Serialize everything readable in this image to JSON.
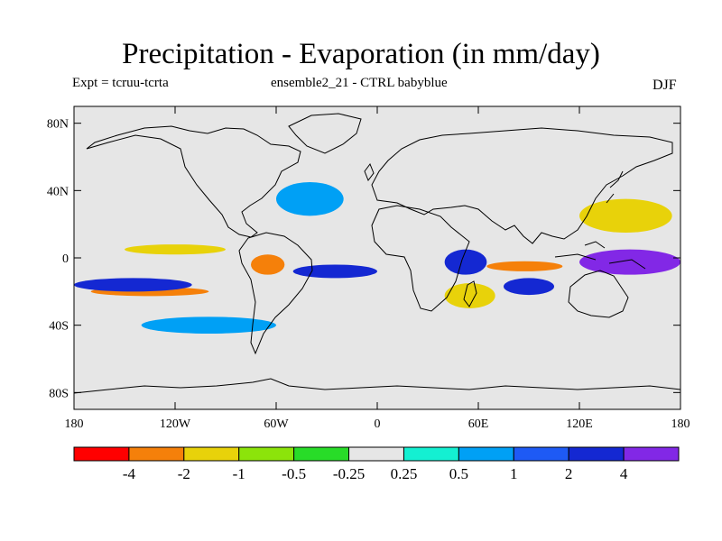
{
  "title": "Precipitation - Evaporation (in mm/day)",
  "experiment": "Expt = tcruu-tcrta",
  "subtitle": "ensemble2_21 - CTRL babyblue",
  "season": "DJF",
  "map": {
    "projection": "equirectangular",
    "lon_range": [
      -180,
      180
    ],
    "lat_range": [
      -90,
      90
    ],
    "x_ticks": [
      {
        "lon": -180,
        "label": "180"
      },
      {
        "lon": -120,
        "label": "120W"
      },
      {
        "lon": -60,
        "label": "60W"
      },
      {
        "lon": 0,
        "label": "0"
      },
      {
        "lon": 60,
        "label": "60E"
      },
      {
        "lon": 120,
        "label": "120E"
      },
      {
        "lon": 180,
        "label": "180"
      }
    ],
    "y_ticks": [
      {
        "lat": 80,
        "label": "80N"
      },
      {
        "lat": 40,
        "label": "40N"
      },
      {
        "lat": 0,
        "label": "0"
      },
      {
        "lat": -40,
        "label": "40S"
      },
      {
        "lat": -80,
        "label": "80S"
      }
    ],
    "background_color": "#e6e6e6",
    "field_regions": [
      {
        "name": "pacific-dry-band",
        "level": "-2",
        "lon": [
          -170,
          -100
        ],
        "lat": [
          -22,
          -18
        ]
      },
      {
        "name": "south-pacific-wet-band",
        "level": "2",
        "lon": [
          -180,
          -110
        ],
        "lat": [
          -20,
          -12
        ]
      },
      {
        "name": "east-pacific-dry",
        "level": "-1",
        "lon": [
          -150,
          -90
        ],
        "lat": [
          2,
          8
        ]
      },
      {
        "name": "amazon-dry",
        "level": "-2",
        "lon": [
          -75,
          -55
        ],
        "lat": [
          -10,
          2
        ]
      },
      {
        "name": "south-atlantic-wet",
        "level": "2",
        "lon": [
          -50,
          0
        ],
        "lat": [
          -12,
          -4
        ]
      },
      {
        "name": "east-africa-wet",
        "level": "2",
        "lon": [
          40,
          65
        ],
        "lat": [
          -10,
          5
        ]
      },
      {
        "name": "indian-ocean-dry",
        "level": "-2",
        "lon": [
          65,
          110
        ],
        "lat": [
          -8,
          -2
        ]
      },
      {
        "name": "madagascar-dry",
        "level": "-1",
        "lon": [
          40,
          70
        ],
        "lat": [
          -30,
          -15
        ]
      },
      {
        "name": "indian-ocean-wet",
        "level": "2",
        "lon": [
          75,
          105
        ],
        "lat": [
          -22,
          -12
        ]
      },
      {
        "name": "west-pacific-wet",
        "level": "4",
        "lon": [
          120,
          180
        ],
        "lat": [
          -10,
          5
        ]
      },
      {
        "name": "north-pacific-dry",
        "level": "-1",
        "lon": [
          120,
          175
        ],
        "lat": [
          15,
          35
        ]
      },
      {
        "name": "north-atlantic-wet",
        "level": "0.5",
        "lon": [
          -60,
          -20
        ],
        "lat": [
          25,
          45
        ]
      },
      {
        "name": "southern-ocean-wet",
        "level": "0.5",
        "lon": [
          -140,
          -60
        ],
        "lat": [
          -45,
          -35
        ]
      }
    ]
  },
  "colorbar": {
    "colors": [
      "#ff0000",
      "#f5800a",
      "#e8d20a",
      "#8ce40a",
      "#28dc28",
      "#e6e6e6",
      "#14f0d2",
      "#00a0f5",
      "#1e5af5",
      "#1428d2",
      "#8228e6"
    ],
    "labels": [
      "-4",
      "-2",
      "-1",
      "-0.5",
      "-0.25",
      "0.25",
      "0.5",
      "1",
      "2",
      "4"
    ]
  }
}
